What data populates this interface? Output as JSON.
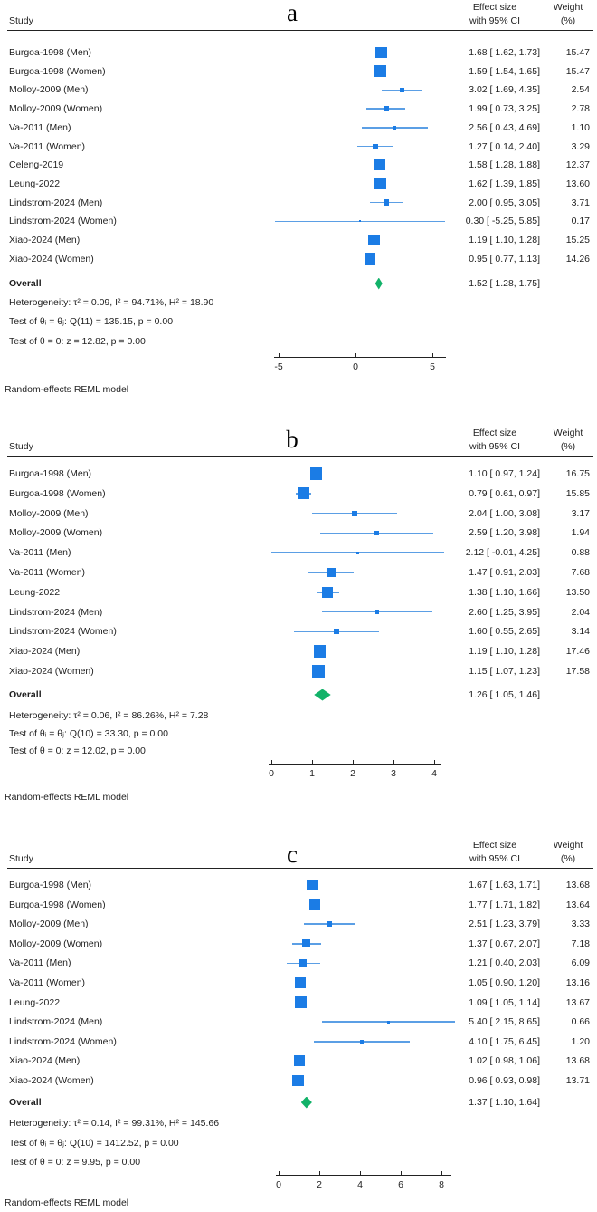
{
  "colors": {
    "marker": "#1b7ce5",
    "ci_line": "#5b9fe5",
    "diamond": "#12b269",
    "text": "#1f1f1f"
  },
  "chart_data": [
    {
      "type": "forest",
      "panel": "a",
      "columns": {
        "study": "Study",
        "effect": [
          "Effect size",
          "with 95% CI"
        ],
        "weight": [
          "Weight",
          "(%)"
        ]
      },
      "x_ticks": [
        -5,
        0,
        5
      ],
      "studies": [
        {
          "study": "Burgoa-1998 (Men)",
          "effect": 1.68,
          "ci_low": 1.62,
          "ci_high": 1.73,
          "label": "1.68 [ 1.62, 1.73]",
          "weight": 15.47,
          "weight_label": "15.47"
        },
        {
          "study": "Burgoa-1998 (Women)",
          "effect": 1.59,
          "ci_low": 1.54,
          "ci_high": 1.65,
          "label": "1.59 [ 1.54, 1.65]",
          "weight": 15.47,
          "weight_label": "15.47"
        },
        {
          "study": "Molloy-2009 (Men)",
          "effect": 3.02,
          "ci_low": 1.69,
          "ci_high": 4.35,
          "label": "3.02 [ 1.69, 4.35]",
          "weight": 2.54,
          "weight_label": "2.54"
        },
        {
          "study": "Molloy-2009 (Women)",
          "effect": 1.99,
          "ci_low": 0.73,
          "ci_high": 3.25,
          "label": "1.99 [ 0.73, 3.25]",
          "weight": 2.78,
          "weight_label": "2.78"
        },
        {
          "study": "Va-2011 (Men)",
          "effect": 2.56,
          "ci_low": 0.43,
          "ci_high": 4.69,
          "label": "2.56 [ 0.43, 4.69]",
          "weight": 1.1,
          "weight_label": "1.10"
        },
        {
          "study": "Va-2011 (Women)",
          "effect": 1.27,
          "ci_low": 0.14,
          "ci_high": 2.4,
          "label": "1.27 [ 0.14, 2.40]",
          "weight": 3.29,
          "weight_label": "3.29"
        },
        {
          "study": "Celeng-2019",
          "effect": 1.58,
          "ci_low": 1.28,
          "ci_high": 1.88,
          "label": "1.58 [ 1.28, 1.88]",
          "weight": 12.37,
          "weight_label": "12.37"
        },
        {
          "study": "Leung-2022",
          "effect": 1.62,
          "ci_low": 1.39,
          "ci_high": 1.85,
          "label": "1.62 [ 1.39, 1.85]",
          "weight": 13.6,
          "weight_label": "13.60"
        },
        {
          "study": "Lindstrom-2024 (Men)",
          "effect": 2.0,
          "ci_low": 0.95,
          "ci_high": 3.05,
          "label": "2.00 [ 0.95, 3.05]",
          "weight": 3.71,
          "weight_label": "3.71"
        },
        {
          "study": "Lindstrom-2024 (Women)",
          "effect": 0.3,
          "ci_low": -5.25,
          "ci_high": 5.85,
          "label": "0.30 [ -5.25, 5.85]",
          "weight": 0.17,
          "weight_label": "0.17"
        },
        {
          "study": "Xiao-2024 (Men)",
          "effect": 1.19,
          "ci_low": 1.1,
          "ci_high": 1.28,
          "label": "1.19 [ 1.10, 1.28]",
          "weight": 15.25,
          "weight_label": "15.25"
        },
        {
          "study": "Xiao-2024 (Women)",
          "effect": 0.95,
          "ci_low": 0.77,
          "ci_high": 1.13,
          "label": "0.95 [ 0.77, 1.13]",
          "weight": 14.26,
          "weight_label": "14.26"
        }
      ],
      "overall": {
        "study": "Overall",
        "effect": 1.52,
        "ci_low": 1.28,
        "ci_high": 1.75,
        "label": "1.52 [ 1.28, 1.75]"
      },
      "heterogeneity": "Heterogeneity: τ² = 0.09, I² = 94.71%, H² = 18.90",
      "test_group": "Test of θᵢ = θⱼ: Q(11) = 135.15, p = 0.00",
      "test_zero": "Test of θ = 0: z = 12.82, p = 0.00",
      "footnote": "Random-effects REML model"
    },
    {
      "type": "forest",
      "panel": "b",
      "columns": {
        "study": "Study",
        "effect": [
          "Effect size",
          "with 95% CI"
        ],
        "weight": [
          "Weight",
          "(%)"
        ]
      },
      "x_ticks": [
        0,
        1,
        2,
        3,
        4
      ],
      "studies": [
        {
          "study": "Burgoa-1998 (Men)",
          "effect": 1.1,
          "ci_low": 0.97,
          "ci_high": 1.24,
          "label": "1.10 [ 0.97, 1.24]",
          "weight": 16.75,
          "weight_label": "16.75"
        },
        {
          "study": "Burgoa-1998 (Women)",
          "effect": 0.79,
          "ci_low": 0.61,
          "ci_high": 0.97,
          "label": "0.79 [ 0.61, 0.97]",
          "weight": 15.85,
          "weight_label": "15.85"
        },
        {
          "study": "Molloy-2009 (Men)",
          "effect": 2.04,
          "ci_low": 1.0,
          "ci_high": 3.08,
          "label": "2.04 [ 1.00, 3.08]",
          "weight": 3.17,
          "weight_label": "3.17"
        },
        {
          "study": "Molloy-2009 (Women)",
          "effect": 2.59,
          "ci_low": 1.2,
          "ci_high": 3.98,
          "label": "2.59 [ 1.20, 3.98]",
          "weight": 1.94,
          "weight_label": "1.94"
        },
        {
          "study": "Va-2011 (Men)",
          "effect": 2.12,
          "ci_low": -0.01,
          "ci_high": 4.25,
          "label": "2.12 [ -0.01, 4.25]",
          "weight": 0.88,
          "weight_label": "0.88"
        },
        {
          "study": "Va-2011 (Women)",
          "effect": 1.47,
          "ci_low": 0.91,
          "ci_high": 2.03,
          "label": "1.47 [ 0.91, 2.03]",
          "weight": 7.68,
          "weight_label": "7.68"
        },
        {
          "study": "Leung-2022",
          "effect": 1.38,
          "ci_low": 1.1,
          "ci_high": 1.66,
          "label": "1.38 [ 1.10, 1.66]",
          "weight": 13.5,
          "weight_label": "13.50"
        },
        {
          "study": "Lindstrom-2024 (Men)",
          "effect": 2.6,
          "ci_low": 1.25,
          "ci_high": 3.95,
          "label": "2.60 [ 1.25, 3.95]",
          "weight": 2.04,
          "weight_label": "2.04"
        },
        {
          "study": "Lindstrom-2024 (Women)",
          "effect": 1.6,
          "ci_low": 0.55,
          "ci_high": 2.65,
          "label": "1.60 [ 0.55, 2.65]",
          "weight": 3.14,
          "weight_label": "3.14"
        },
        {
          "study": "Xiao-2024 (Men)",
          "effect": 1.19,
          "ci_low": 1.1,
          "ci_high": 1.28,
          "label": "1.19 [ 1.10, 1.28]",
          "weight": 17.46,
          "weight_label": "17.46"
        },
        {
          "study": "Xiao-2024 (Women)",
          "effect": 1.15,
          "ci_low": 1.07,
          "ci_high": 1.23,
          "label": "1.15 [ 1.07, 1.23]",
          "weight": 17.58,
          "weight_label": "17.58"
        }
      ],
      "overall": {
        "study": "Overall",
        "effect": 1.26,
        "ci_low": 1.05,
        "ci_high": 1.46,
        "label": "1.26 [ 1.05, 1.46]"
      },
      "heterogeneity": "Heterogeneity: τ² = 0.06, I² = 86.26%, H² = 7.28",
      "test_group": "Test of θᵢ = θⱼ: Q(10) = 33.30, p = 0.00",
      "test_zero": "Test of θ = 0: z = 12.02, p = 0.00",
      "footnote": "Random-effects REML model"
    },
    {
      "type": "forest",
      "panel": "c",
      "columns": {
        "study": "Study",
        "effect": [
          "Effect size",
          "with 95% CI"
        ],
        "weight": [
          "Weight",
          "(%)"
        ]
      },
      "x_ticks": [
        0,
        2,
        4,
        6,
        8
      ],
      "studies": [
        {
          "study": "Burgoa-1998 (Men)",
          "effect": 1.67,
          "ci_low": 1.63,
          "ci_high": 1.71,
          "label": "1.67 [ 1.63, 1.71]",
          "weight": 13.68,
          "weight_label": "13.68"
        },
        {
          "study": "Burgoa-1998 (Women)",
          "effect": 1.77,
          "ci_low": 1.71,
          "ci_high": 1.82,
          "label": "1.77 [ 1.71, 1.82]",
          "weight": 13.64,
          "weight_label": "13.64"
        },
        {
          "study": "Molloy-2009 (Men)",
          "effect": 2.51,
          "ci_low": 1.23,
          "ci_high": 3.79,
          "label": "2.51 [ 1.23, 3.79]",
          "weight": 3.33,
          "weight_label": "3.33"
        },
        {
          "study": "Molloy-2009 (Women)",
          "effect": 1.37,
          "ci_low": 0.67,
          "ci_high": 2.07,
          "label": "1.37 [ 0.67, 2.07]",
          "weight": 7.18,
          "weight_label": "7.18"
        },
        {
          "study": "Va-2011 (Men)",
          "effect": 1.21,
          "ci_low": 0.4,
          "ci_high": 2.03,
          "label": "1.21 [ 0.40, 2.03]",
          "weight": 6.09,
          "weight_label": "6.09"
        },
        {
          "study": "Va-2011 (Women)",
          "effect": 1.05,
          "ci_low": 0.9,
          "ci_high": 1.2,
          "label": "1.05 [ 0.90, 1.20]",
          "weight": 13.16,
          "weight_label": "13.16"
        },
        {
          "study": "Leung-2022",
          "effect": 1.09,
          "ci_low": 1.05,
          "ci_high": 1.14,
          "label": "1.09 [ 1.05, 1.14]",
          "weight": 13.67,
          "weight_label": "13.67"
        },
        {
          "study": "Lindstrom-2024 (Men)",
          "effect": 5.4,
          "ci_low": 2.15,
          "ci_high": 8.65,
          "label": "5.40 [ 2.15, 8.65]",
          "weight": 0.66,
          "weight_label": "0.66"
        },
        {
          "study": "Lindstrom-2024 (Women)",
          "effect": 4.1,
          "ci_low": 1.75,
          "ci_high": 6.45,
          "label": "4.10 [ 1.75, 6.45]",
          "weight": 1.2,
          "weight_label": "1.20"
        },
        {
          "study": "Xiao-2024 (Men)",
          "effect": 1.02,
          "ci_low": 0.98,
          "ci_high": 1.06,
          "label": "1.02 [ 0.98, 1.06]",
          "weight": 13.68,
          "weight_label": "13.68"
        },
        {
          "study": "Xiao-2024 (Women)",
          "effect": 0.96,
          "ci_low": 0.93,
          "ci_high": 0.98,
          "label": "0.96 [ 0.93, 0.98]",
          "weight": 13.71,
          "weight_label": "13.71"
        }
      ],
      "overall": {
        "study": "Overall",
        "effect": 1.37,
        "ci_low": 1.1,
        "ci_high": 1.64,
        "label": "1.37 [ 1.10, 1.64]"
      },
      "heterogeneity": "Heterogeneity: τ² = 0.14, I² = 99.31%, H² = 145.66",
      "test_group": "Test of θᵢ = θⱼ: Q(10) = 1412.52, p = 0.00",
      "test_zero": "Test of θ = 0: z = 9.95, p = 0.00",
      "footnote": "Random-effects REML model"
    }
  ]
}
